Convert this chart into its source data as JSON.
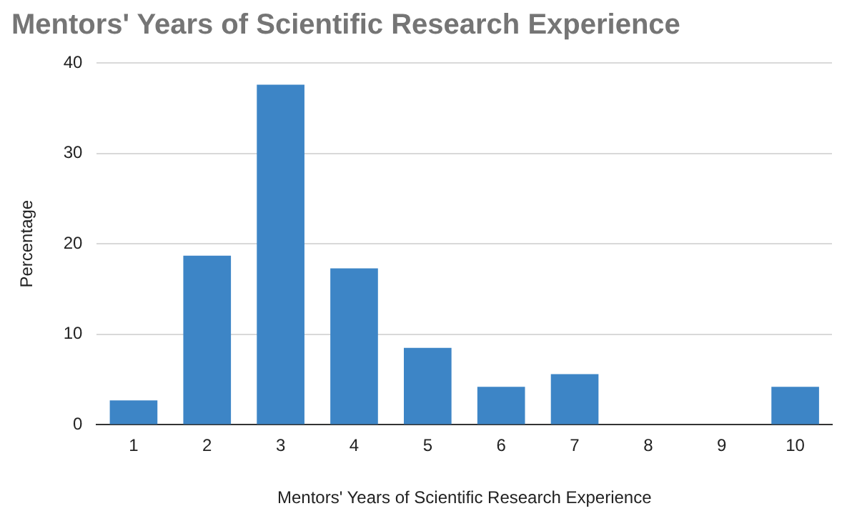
{
  "chart_data": {
    "type": "bar",
    "title": "Mentors' Years of Scientific Research Experience",
    "xlabel": "Mentors' Years of Scientific Research Experience",
    "ylabel": "Percentage",
    "categories": [
      "1",
      "2",
      "3",
      "4",
      "5",
      "6",
      "7",
      "8",
      "9",
      "10"
    ],
    "values": [
      2.7,
      18.7,
      37.6,
      17.3,
      8.5,
      4.2,
      5.6,
      0,
      0,
      4.2
    ],
    "color": "#3d85c6",
    "ylim": [
      0,
      40
    ],
    "yticks": [
      0,
      10,
      20,
      30,
      40
    ],
    "grid": "y",
    "legend": false
  }
}
